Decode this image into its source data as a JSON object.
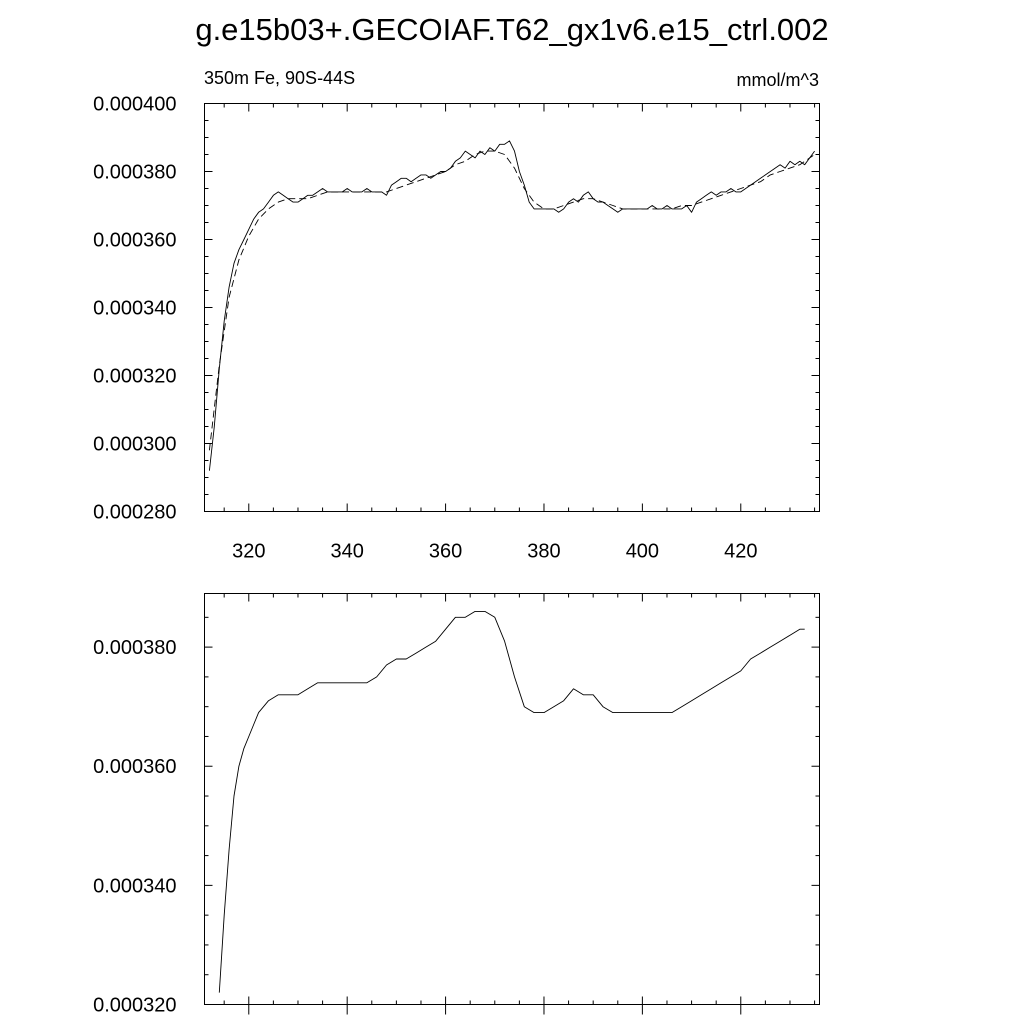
{
  "figure": {
    "title": "g.e15b03+.GECOIAF.T62_gx1v6.e15_ctrl.002"
  },
  "chart_data": [
    {
      "type": "line",
      "left_label": "350m Fe, 90S-44S",
      "right_label": "mmol/m^3",
      "xlim": [
        311,
        436
      ],
      "ylim": [
        0.00028,
        0.0004
      ],
      "x_ticks": [
        320,
        340,
        360,
        380,
        400,
        420
      ],
      "x_tick_labels": [
        "320",
        "340",
        "360",
        "380",
        "400",
        "420"
      ],
      "y_ticks": [
        0.00028,
        0.0003,
        0.00032,
        0.00034,
        0.00036,
        0.00038,
        0.0004
      ],
      "y_tick_labels": [
        "0.000280",
        "0.000300",
        "0.000320",
        "0.000340",
        "0.000360",
        "0.000380",
        "0.000400"
      ],
      "x_minor_step": 5,
      "y_minor_step": 5e-06,
      "series": [
        {
          "style": "solid",
          "x": [
            312,
            313,
            314,
            315,
            316,
            317,
            318,
            319,
            320,
            321,
            322,
            323,
            324,
            325,
            326,
            327,
            328,
            329,
            330,
            331,
            332,
            333,
            334,
            335,
            336,
            337,
            338,
            339,
            340,
            341,
            342,
            343,
            344,
            345,
            346,
            347,
            348,
            349,
            350,
            351,
            352,
            353,
            354,
            355,
            356,
            357,
            358,
            359,
            360,
            361,
            362,
            363,
            364,
            365,
            366,
            367,
            368,
            369,
            370,
            371,
            372,
            373,
            374,
            375,
            376,
            377,
            378,
            379,
            380,
            381,
            382,
            383,
            384,
            385,
            386,
            387,
            388,
            389,
            390,
            391,
            392,
            393,
            394,
            395,
            396,
            397,
            398,
            399,
            400,
            401,
            402,
            403,
            404,
            405,
            406,
            407,
            408,
            409,
            410,
            411,
            412,
            413,
            414,
            415,
            416,
            417,
            418,
            419,
            420,
            421,
            422,
            423,
            424,
            425,
            426,
            427,
            428,
            429,
            430,
            431,
            432,
            433,
            434,
            435
          ],
          "y": [
            0.000292,
            0.000305,
            0.000322,
            0.000336,
            0.000346,
            0.000353,
            0.000357,
            0.00036,
            0.000363,
            0.000366,
            0.000368,
            0.000369,
            0.000371,
            0.000373,
            0.000374,
            0.000373,
            0.000372,
            0.000371,
            0.000371,
            0.000372,
            0.000373,
            0.000373,
            0.000374,
            0.000375,
            0.000374,
            0.000374,
            0.000374,
            0.000374,
            0.000375,
            0.000374,
            0.000374,
            0.000374,
            0.000375,
            0.000374,
            0.000374,
            0.000374,
            0.000373,
            0.000376,
            0.000377,
            0.000378,
            0.000378,
            0.000377,
            0.000378,
            0.000379,
            0.000379,
            0.000378,
            0.000379,
            0.00038,
            0.00038,
            0.000381,
            0.000383,
            0.000384,
            0.000386,
            0.000385,
            0.000384,
            0.000386,
            0.000385,
            0.000387,
            0.000386,
            0.000388,
            0.000388,
            0.000389,
            0.000386,
            0.00038,
            0.000376,
            0.000371,
            0.000369,
            0.000369,
            0.000369,
            0.000369,
            0.000369,
            0.000368,
            0.000369,
            0.000371,
            0.000372,
            0.000371,
            0.000373,
            0.000374,
            0.000372,
            0.000371,
            0.000371,
            0.00037,
            0.000369,
            0.000368,
            0.000369,
            0.000369,
            0.000369,
            0.000369,
            0.000369,
            0.000369,
            0.00037,
            0.000369,
            0.000369,
            0.00037,
            0.000369,
            0.000369,
            0.000369,
            0.00037,
            0.000368,
            0.000371,
            0.000372,
            0.000373,
            0.000374,
            0.000373,
            0.000374,
            0.000374,
            0.000375,
            0.000374,
            0.000374,
            0.000375,
            0.000376,
            0.000377,
            0.000378,
            0.000379,
            0.00038,
            0.000381,
            0.000382,
            0.000381,
            0.000383,
            0.000382,
            0.000383,
            0.000382,
            0.000384,
            0.000386
          ]
        },
        {
          "style": "dashed",
          "x": [
            312,
            314,
            316,
            318,
            320,
            322,
            324,
            326,
            328,
            330,
            332,
            334,
            336,
            338,
            340,
            342,
            344,
            346,
            348,
            350,
            352,
            354,
            356,
            358,
            360,
            362,
            364,
            366,
            368,
            370,
            372,
            374,
            376,
            378,
            380,
            382,
            384,
            386,
            388,
            390,
            392,
            394,
            396,
            398,
            400,
            402,
            404,
            406,
            408,
            410,
            412,
            414,
            416,
            418,
            420,
            422,
            424,
            426,
            428,
            430,
            432,
            434,
            435
          ],
          "y": [
            0.000298,
            0.000323,
            0.000343,
            0.000354,
            0.000361,
            0.000366,
            0.000369,
            0.000371,
            0.000372,
            0.000372,
            0.000372,
            0.000373,
            0.000374,
            0.000374,
            0.000374,
            0.000374,
            0.000374,
            0.000374,
            0.000374,
            0.000375,
            0.000376,
            0.000377,
            0.000378,
            0.000379,
            0.00038,
            0.000382,
            0.000383,
            0.000385,
            0.000386,
            0.000386,
            0.000385,
            0.000381,
            0.000375,
            0.000371,
            0.000369,
            0.000369,
            0.00037,
            0.000371,
            0.000372,
            0.000372,
            0.000371,
            0.00037,
            0.000369,
            0.000369,
            0.000369,
            0.000369,
            0.000369,
            0.000369,
            0.00037,
            0.00037,
            0.000371,
            0.000372,
            0.000373,
            0.000374,
            0.000375,
            0.000376,
            0.000377,
            0.000379,
            0.00038,
            0.000381,
            0.000382,
            0.000384,
            0.000385
          ]
        }
      ]
    },
    {
      "type": "line",
      "xlim": [
        311,
        436
      ],
      "ylim": [
        0.00032,
        0.000389
      ],
      "x_ticks": [
        320,
        340,
        360,
        380,
        400,
        420
      ],
      "x_tick_labels": [],
      "y_ticks": [
        0.00032,
        0.00034,
        0.00036,
        0.00038
      ],
      "y_tick_labels": [
        "0.000320",
        "0.000340",
        "0.000360",
        "0.000380"
      ],
      "x_minor_step": 5,
      "y_minor_step": 5e-06,
      "series": [
        {
          "style": "solid",
          "x": [
            314,
            315,
            316,
            317,
            318,
            319,
            320,
            321,
            322,
            323,
            324,
            326,
            328,
            330,
            332,
            334,
            336,
            338,
            340,
            342,
            344,
            346,
            348,
            350,
            352,
            354,
            356,
            358,
            360,
            362,
            364,
            366,
            368,
            370,
            372,
            374,
            376,
            378,
            380,
            382,
            384,
            386,
            388,
            390,
            392,
            394,
            396,
            398,
            400,
            402,
            404,
            406,
            408,
            410,
            412,
            414,
            416,
            418,
            420,
            422,
            424,
            426,
            428,
            430,
            432,
            433
          ],
          "y": [
            0.000322,
            0.000335,
            0.000346,
            0.000355,
            0.00036,
            0.000363,
            0.000365,
            0.000367,
            0.000369,
            0.00037,
            0.000371,
            0.000372,
            0.000372,
            0.000372,
            0.000373,
            0.000374,
            0.000374,
            0.000374,
            0.000374,
            0.000374,
            0.000374,
            0.000375,
            0.000377,
            0.000378,
            0.000378,
            0.000379,
            0.00038,
            0.000381,
            0.000383,
            0.000385,
            0.000385,
            0.000386,
            0.000386,
            0.000385,
            0.000381,
            0.000375,
            0.00037,
            0.000369,
            0.000369,
            0.00037,
            0.000371,
            0.000373,
            0.000372,
            0.000372,
            0.00037,
            0.000369,
            0.000369,
            0.000369,
            0.000369,
            0.000369,
            0.000369,
            0.000369,
            0.00037,
            0.000371,
            0.000372,
            0.000373,
            0.000374,
            0.000375,
            0.000376,
            0.000378,
            0.000379,
            0.00038,
            0.000381,
            0.000382,
            0.000383,
            0.000383
          ]
        }
      ]
    }
  ]
}
